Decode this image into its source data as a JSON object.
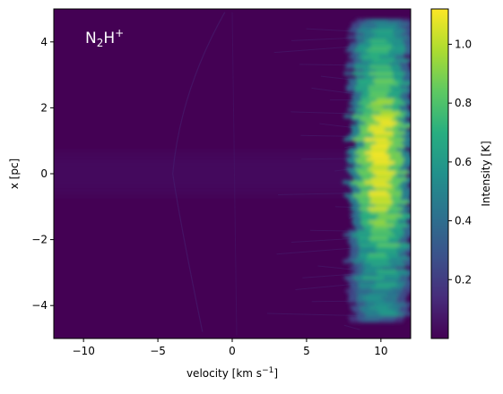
{
  "chart_data": {
    "type": "heatmap",
    "title": "",
    "annotation": {
      "base": "N",
      "sub": "2",
      "base2": "H",
      "sup": "+"
    },
    "xlabel": {
      "prefix": "velocity [km s",
      "sup": "−1",
      "suffix": "]"
    },
    "ylabel": "x [pc]",
    "xlim": [
      -12,
      12
    ],
    "ylim": [
      -5,
      5
    ],
    "x_ticks": [
      {
        "value": -10,
        "label": "−10"
      },
      {
        "value": -5,
        "label": "−5"
      },
      {
        "value": 0,
        "label": "0"
      },
      {
        "value": 5,
        "label": "5"
      },
      {
        "value": 10,
        "label": "10"
      }
    ],
    "y_ticks": [
      {
        "value": -4,
        "label": "−4"
      },
      {
        "value": -2,
        "label": "−2"
      },
      {
        "value": 0,
        "label": "0"
      },
      {
        "value": 2,
        "label": "2"
      },
      {
        "value": 4,
        "label": "4"
      }
    ],
    "colorbar": {
      "label": "Intensity [K]",
      "range": [
        0.0,
        1.12
      ],
      "colormap": "viridis",
      "ticks": [
        {
          "value": 0.2,
          "label": "0.2"
        },
        {
          "value": 0.4,
          "label": "0.4"
        },
        {
          "value": 0.6,
          "label": "0.6"
        },
        {
          "value": 0.8,
          "label": "0.8"
        },
        {
          "value": 1.0,
          "label": "1.0"
        }
      ]
    },
    "features": {
      "emission_band": {
        "v_center": 10.0,
        "v_halfwidth": 1.6,
        "x_range": [
          -4.5,
          4.7
        ],
        "peak_intensity": 1.1,
        "peak_x": 0.5
      },
      "horizontal_streak": {
        "x_center": 0.0,
        "x_halfwidth": 0.75,
        "v_range": [
          -12,
          8
        ],
        "intensity": 0.08
      }
    }
  },
  "colors": {
    "background": "#440154",
    "annotation": "#ffffff"
  }
}
